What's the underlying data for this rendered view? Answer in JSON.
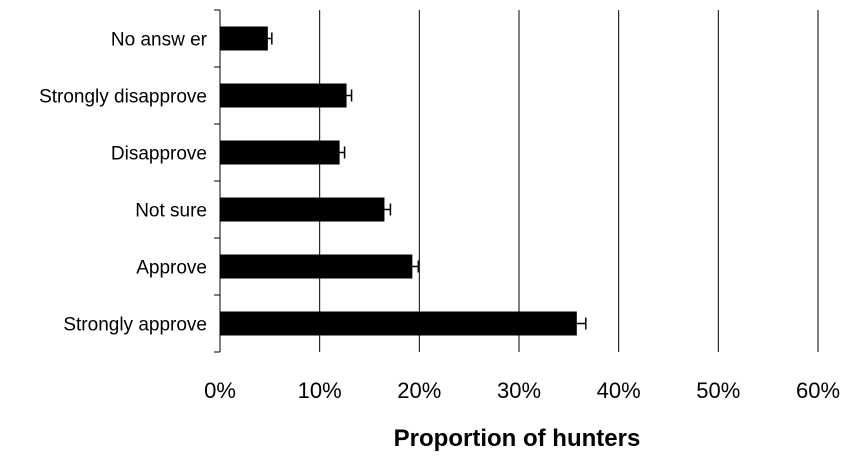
{
  "chart_data": {
    "type": "bar",
    "orientation": "horizontal",
    "categories": [
      "No answ er",
      "Strongly disapprove",
      "Disapprove",
      "Not sure",
      "Approve",
      "Strongly approve"
    ],
    "values": [
      4.8,
      12.7,
      12.0,
      16.5,
      19.3,
      35.8
    ],
    "error": [
      0.4,
      0.5,
      0.5,
      0.6,
      0.6,
      0.9
    ],
    "xlim": [
      0,
      60
    ],
    "x_ticks": [
      0,
      10,
      20,
      30,
      40,
      50,
      60
    ],
    "x_tick_labels": [
      "0%",
      "10%",
      "20%",
      "30%",
      "40%",
      "50%",
      "60%"
    ],
    "xlabel": "Proportion of hunters",
    "ylabel": "",
    "title": "",
    "grid": "vertical",
    "legend": "none",
    "bar_color": "#000000"
  }
}
